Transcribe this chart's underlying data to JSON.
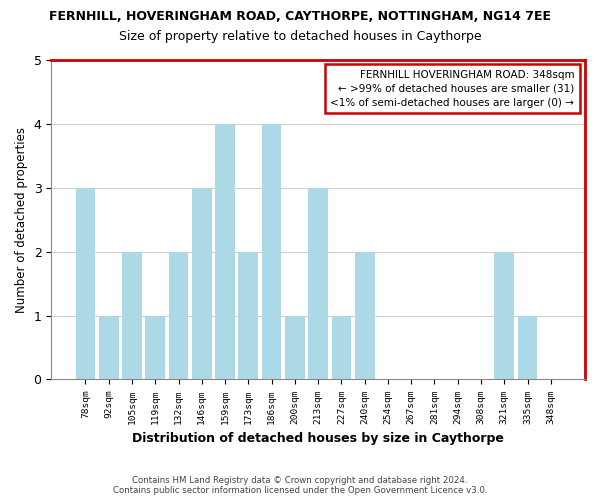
{
  "title": "FERNHILL, HOVERINGHAM ROAD, CAYTHORPE, NOTTINGHAM, NG14 7EE",
  "subtitle": "Size of property relative to detached houses in Caythorpe",
  "xlabel": "Distribution of detached houses by size in Caythorpe",
  "ylabel": "Number of detached properties",
  "bar_labels": [
    "78sqm",
    "92sqm",
    "105sqm",
    "119sqm",
    "132sqm",
    "146sqm",
    "159sqm",
    "173sqm",
    "186sqm",
    "200sqm",
    "213sqm",
    "227sqm",
    "240sqm",
    "254sqm",
    "267sqm",
    "281sqm",
    "294sqm",
    "308sqm",
    "321sqm",
    "335sqm",
    "348sqm"
  ],
  "bar_values": [
    3,
    1,
    2,
    1,
    2,
    3,
    4,
    2,
    4,
    1,
    3,
    1,
    2,
    0,
    0,
    0,
    0,
    0,
    2,
    1,
    0
  ],
  "bar_color": "#add8e6",
  "box_text_line1": "FERNHILL HOVERINGHAM ROAD: 348sqm",
  "box_text_line2": "← >99% of detached houses are smaller (31)",
  "box_text_line3": "<1% of semi-detached houses are larger (0) →",
  "box_facecolor": "#ffffff",
  "box_edgecolor": "#cc0000",
  "red_line_color": "#cc0000",
  "ylim": [
    0,
    5
  ],
  "yticks": [
    0,
    1,
    2,
    3,
    4,
    5
  ],
  "footer_line1": "Contains HM Land Registry data © Crown copyright and database right 2024.",
  "footer_line2": "Contains public sector information licensed under the Open Government Licence v3.0.",
  "bg_color": "#ffffff",
  "grid_color": "#cccccc",
  "title_fontsize": 9,
  "subtitle_fontsize": 9
}
